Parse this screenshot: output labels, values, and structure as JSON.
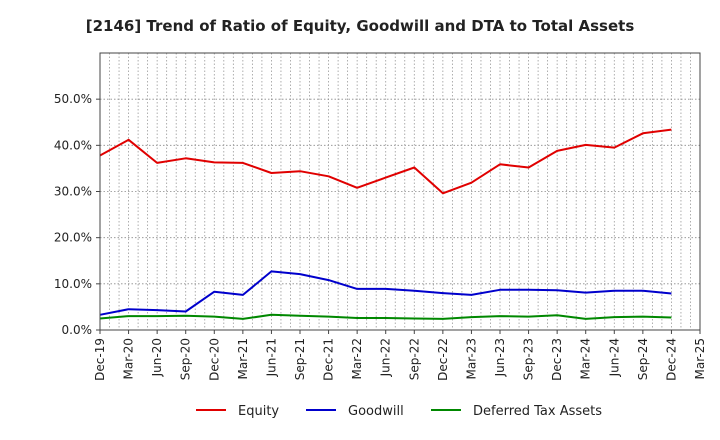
{
  "chart_data": {
    "type": "line",
    "title": "[2146]  Trend of Ratio of Equity, Goodwill and DTA to Total Assets",
    "xlabel": "",
    "ylabel": "",
    "ylim": [
      0,
      60
    ],
    "yticks": [
      0,
      10,
      20,
      30,
      40,
      50
    ],
    "ytick_labels": [
      "0.0%",
      "10.0%",
      "20.0%",
      "30.0%",
      "40.0%",
      "50.0%"
    ],
    "x": [
      "Dec-19",
      "Mar-20",
      "Jun-20",
      "Sep-20",
      "Dec-20",
      "Mar-21",
      "Jun-21",
      "Sep-21",
      "Dec-21",
      "Mar-22",
      "Jun-22",
      "Sep-22",
      "Dec-22",
      "Mar-23",
      "Jun-23",
      "Sep-23",
      "Dec-23",
      "Mar-24",
      "Jun-24",
      "Sep-24",
      "Dec-24",
      "Mar-25"
    ],
    "grid": true,
    "legend_position": "bottom",
    "series": [
      {
        "name": "Equity",
        "color": "#e00000",
        "values": [
          37.8,
          41.2,
          36.2,
          37.2,
          36.3,
          36.2,
          34.0,
          34.4,
          33.3,
          30.8,
          33.0,
          35.2,
          29.6,
          31.9,
          35.9,
          35.2,
          38.8,
          40.1,
          39.5,
          42.6,
          43.4,
          null
        ]
      },
      {
        "name": "Goodwill",
        "color": "#0000cc",
        "values": [
          3.3,
          4.5,
          4.3,
          4.0,
          8.3,
          7.6,
          12.7,
          12.1,
          10.8,
          8.9,
          8.9,
          8.5,
          8.0,
          7.6,
          8.7,
          8.7,
          8.6,
          8.1,
          8.5,
          8.5,
          7.9,
          null
        ]
      },
      {
        "name": "Deferred Tax Assets",
        "color": "#008800",
        "values": [
          2.5,
          3.0,
          3.0,
          3.1,
          2.9,
          2.4,
          3.3,
          3.1,
          2.9,
          2.6,
          2.6,
          2.5,
          2.4,
          2.8,
          3.0,
          2.9,
          3.2,
          2.4,
          2.8,
          2.9,
          2.7,
          null
        ]
      }
    ]
  }
}
